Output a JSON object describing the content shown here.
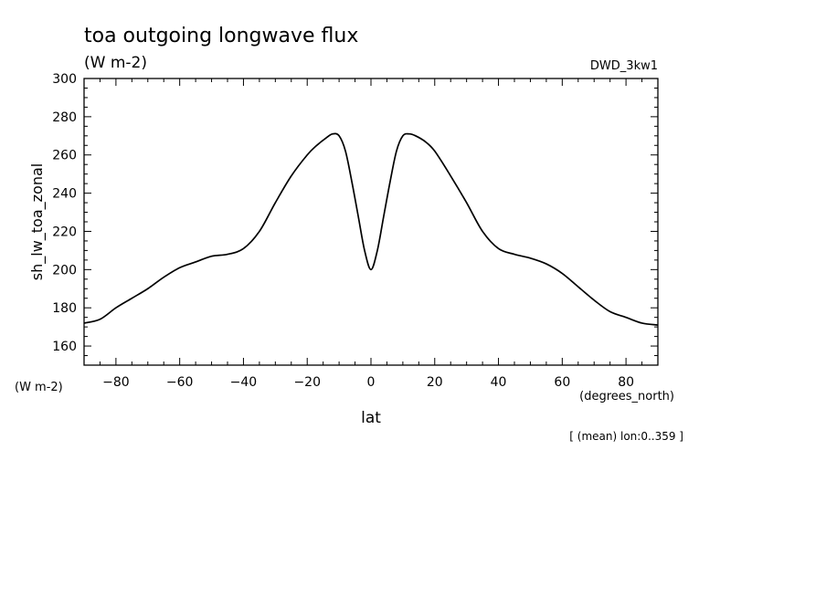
{
  "chart_data": {
    "type": "line",
    "title": "toa outgoing longwave flux",
    "subtitle": "(W m-2)",
    "model_label": "DWD_3kw1",
    "ylabel": "sh_lw_toa_zonal",
    "y_units": "(W m-2)",
    "xlabel": "lat",
    "x_units": "(degrees_north)",
    "footnote": "[ (mean) lon:0..359 ]",
    "xlim": [
      -90,
      90
    ],
    "ylim": [
      150,
      300
    ],
    "x_ticks": [
      -80,
      -60,
      -40,
      -20,
      0,
      20,
      40,
      60,
      80
    ],
    "y_ticks": [
      160,
      180,
      200,
      220,
      240,
      260,
      280,
      300
    ],
    "grid": false,
    "series": [
      {
        "x": [
          -90,
          -85,
          -80,
          -75,
          -70,
          -65,
          -60,
          -55,
          -50,
          -45,
          -40,
          -35,
          -30,
          -25,
          -20,
          -17,
          -14,
          -12,
          -10,
          -8,
          -6,
          -4,
          -2,
          0,
          2,
          4,
          6,
          8,
          10,
          12,
          14,
          17,
          20,
          25,
          30,
          35,
          40,
          45,
          50,
          55,
          60,
          65,
          70,
          75,
          80,
          85,
          90
        ],
        "y": [
          172,
          174,
          180,
          185,
          190,
          196,
          201,
          204,
          207,
          208,
          211,
          220,
          235,
          249,
          260,
          265,
          269,
          271,
          270,
          262,
          246,
          228,
          210,
          200,
          210,
          228,
          246,
          262,
          270,
          271,
          270,
          267,
          262,
          249,
          235,
          220,
          211,
          208,
          206,
          203,
          198,
          191,
          184,
          178,
          175,
          172,
          171
        ]
      }
    ]
  }
}
